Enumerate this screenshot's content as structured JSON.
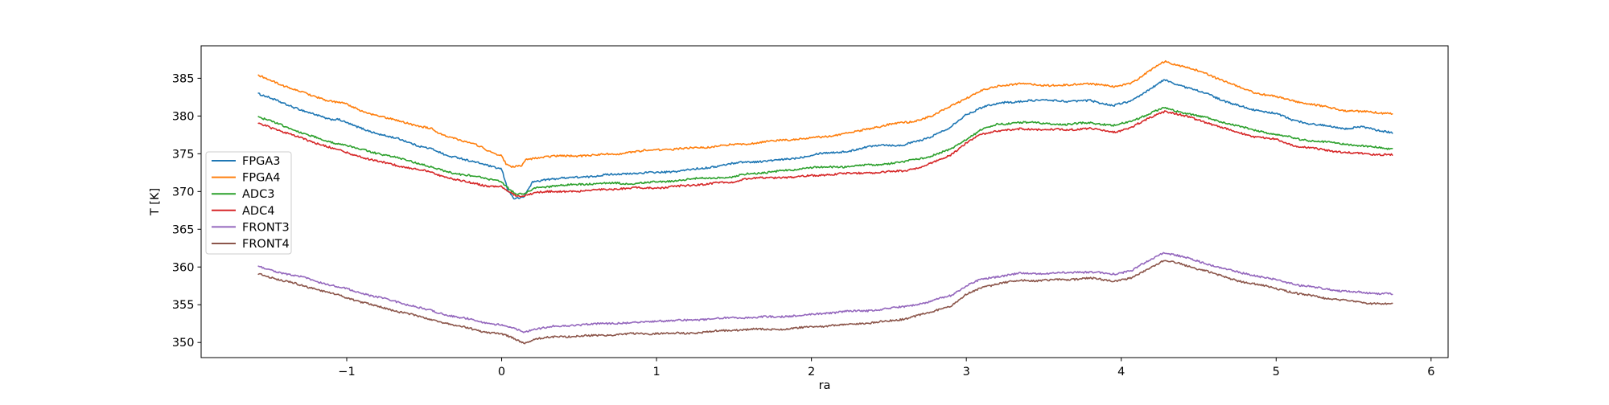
{
  "chart_data": {
    "type": "line",
    "title": "",
    "xlabel": "ra",
    "ylabel": "T [K]",
    "xlim": [
      -1.94,
      6.11
    ],
    "ylim": [
      348.0,
      389.3
    ],
    "xticks": [
      -1,
      0,
      1,
      2,
      3,
      4,
      5,
      6
    ],
    "xtick_labels": [
      "−1",
      "0",
      "1",
      "2",
      "3",
      "4",
      "5",
      "6"
    ],
    "yticks": [
      350,
      355,
      360,
      365,
      370,
      375,
      380,
      385
    ],
    "ytick_labels": [
      "350",
      "355",
      "360",
      "365",
      "370",
      "375",
      "380",
      "385"
    ],
    "grid": false,
    "legend_position": "upper left",
    "legend_entries": [
      "FPGA3",
      "FPGA4",
      "ADC3",
      "ADC4",
      "FRONT3",
      "FRONT4"
    ],
    "series": [
      {
        "name": "FPGA3",
        "color": "#1f77b4",
        "points": [
          [
            -1.57,
            383.0
          ],
          [
            -1.4,
            381.6
          ],
          [
            -1.25,
            380.4
          ],
          [
            -1.12,
            379.6
          ],
          [
            -1.05,
            379.6
          ],
          [
            -0.95,
            378.7
          ],
          [
            -0.8,
            377.7
          ],
          [
            -0.65,
            376.8
          ],
          [
            -0.55,
            376.1
          ],
          [
            -0.45,
            375.6
          ],
          [
            -0.35,
            374.7
          ],
          [
            -0.28,
            374.6
          ],
          [
            -0.15,
            373.8
          ],
          [
            -0.05,
            373.2
          ],
          [
            0.0,
            373.0
          ],
          [
            0.04,
            370.2
          ],
          [
            0.08,
            369.0
          ],
          [
            0.14,
            369.1
          ],
          [
            0.2,
            371.2
          ],
          [
            0.28,
            371.6
          ],
          [
            0.45,
            371.9
          ],
          [
            0.7,
            372.2
          ],
          [
            1.0,
            372.5
          ],
          [
            1.3,
            373.1
          ],
          [
            1.55,
            373.8
          ],
          [
            1.8,
            374.2
          ],
          [
            2.05,
            375.0
          ],
          [
            2.25,
            375.3
          ],
          [
            2.45,
            376.3
          ],
          [
            2.58,
            376.1
          ],
          [
            2.75,
            377.1
          ],
          [
            2.88,
            378.2
          ],
          [
            3.0,
            380.2
          ],
          [
            3.12,
            381.3
          ],
          [
            3.25,
            381.9
          ],
          [
            3.4,
            382.0
          ],
          [
            3.55,
            382.1
          ],
          [
            3.67,
            381.8
          ],
          [
            3.8,
            382.1
          ],
          [
            3.95,
            381.4
          ],
          [
            4.07,
            382.1
          ],
          [
            4.28,
            384.7
          ],
          [
            4.4,
            383.9
          ],
          [
            4.55,
            383.0
          ],
          [
            4.7,
            381.8
          ],
          [
            4.85,
            380.8
          ],
          [
            5.0,
            380.3
          ],
          [
            5.1,
            379.4
          ],
          [
            5.3,
            378.8
          ],
          [
            5.45,
            378.4
          ],
          [
            5.55,
            378.6
          ],
          [
            5.65,
            378.0
          ],
          [
            5.75,
            377.8
          ]
        ]
      },
      {
        "name": "FPGA4",
        "color": "#ff7f0e",
        "points": [
          [
            -1.57,
            385.4
          ],
          [
            -1.4,
            384.0
          ],
          [
            -1.25,
            382.8
          ],
          [
            -1.12,
            382.0
          ],
          [
            -1.02,
            381.7
          ],
          [
            -0.9,
            380.7
          ],
          [
            -0.75,
            379.8
          ],
          [
            -0.6,
            379.0
          ],
          [
            -0.45,
            378.2
          ],
          [
            -0.42,
            377.7
          ],
          [
            -0.3,
            377.1
          ],
          [
            -0.15,
            376.1
          ],
          [
            -0.05,
            375.1
          ],
          [
            0.0,
            374.8
          ],
          [
            0.03,
            373.6
          ],
          [
            0.07,
            373.2
          ],
          [
            0.13,
            373.3
          ],
          [
            0.16,
            374.2
          ],
          [
            0.3,
            374.6
          ],
          [
            0.5,
            374.8
          ],
          [
            0.75,
            375.0
          ],
          [
            1.0,
            375.5
          ],
          [
            1.3,
            375.9
          ],
          [
            1.6,
            376.3
          ],
          [
            1.85,
            376.9
          ],
          [
            2.1,
            377.3
          ],
          [
            2.3,
            377.9
          ],
          [
            2.5,
            378.9
          ],
          [
            2.65,
            379.3
          ],
          [
            2.8,
            380.2
          ],
          [
            2.95,
            381.8
          ],
          [
            3.1,
            383.3
          ],
          [
            3.22,
            384.1
          ],
          [
            3.35,
            384.3
          ],
          [
            3.5,
            384.1
          ],
          [
            3.65,
            384.0
          ],
          [
            3.8,
            384.3
          ],
          [
            3.95,
            383.9
          ],
          [
            4.07,
            384.5
          ],
          [
            4.28,
            387.2
          ],
          [
            4.4,
            386.5
          ],
          [
            4.55,
            385.6
          ],
          [
            4.7,
            384.4
          ],
          [
            4.85,
            383.2
          ],
          [
            5.0,
            382.5
          ],
          [
            5.15,
            381.8
          ],
          [
            5.3,
            381.3
          ],
          [
            5.45,
            380.8
          ],
          [
            5.6,
            380.5
          ],
          [
            5.75,
            380.3
          ]
        ]
      },
      {
        "name": "ADC3",
        "color": "#2ca02c",
        "points": [
          [
            -1.57,
            379.8
          ],
          [
            -1.4,
            378.6
          ],
          [
            -1.25,
            377.5
          ],
          [
            -1.1,
            376.6
          ],
          [
            -0.95,
            375.8
          ],
          [
            -0.8,
            375.0
          ],
          [
            -0.65,
            374.3
          ],
          [
            -0.5,
            373.6
          ],
          [
            -0.35,
            372.6
          ],
          [
            -0.2,
            372.1
          ],
          [
            -0.1,
            371.6
          ],
          [
            0.0,
            371.3
          ],
          [
            0.05,
            370.3
          ],
          [
            0.1,
            369.6
          ],
          [
            0.15,
            369.7
          ],
          [
            0.22,
            370.6
          ],
          [
            0.35,
            370.8
          ],
          [
            0.6,
            371.0
          ],
          [
            0.85,
            371.1
          ],
          [
            1.0,
            371.3
          ],
          [
            1.3,
            371.7
          ],
          [
            1.5,
            371.9
          ],
          [
            1.58,
            372.4
          ],
          [
            1.8,
            372.7
          ],
          [
            2.0,
            373.1
          ],
          [
            2.2,
            373.3
          ],
          [
            2.4,
            373.6
          ],
          [
            2.6,
            373.9
          ],
          [
            2.75,
            374.5
          ],
          [
            2.9,
            375.6
          ],
          [
            3.0,
            377.0
          ],
          [
            3.1,
            378.3
          ],
          [
            3.2,
            378.9
          ],
          [
            3.35,
            379.1
          ],
          [
            3.5,
            379.0
          ],
          [
            3.65,
            378.9
          ],
          [
            3.8,
            379.2
          ],
          [
            3.95,
            378.7
          ],
          [
            4.07,
            379.3
          ],
          [
            4.28,
            381.1
          ],
          [
            4.4,
            380.5
          ],
          [
            4.55,
            379.8
          ],
          [
            4.7,
            378.9
          ],
          [
            4.85,
            378.1
          ],
          [
            5.0,
            377.6
          ],
          [
            5.15,
            377.0
          ],
          [
            5.3,
            376.6
          ],
          [
            5.45,
            376.2
          ],
          [
            5.6,
            375.9
          ],
          [
            5.75,
            375.7
          ]
        ]
      },
      {
        "name": "ADC4",
        "color": "#d62728",
        "points": [
          [
            -1.57,
            379.1
          ],
          [
            -1.4,
            377.8
          ],
          [
            -1.25,
            376.7
          ],
          [
            -1.1,
            375.8
          ],
          [
            -0.95,
            374.9
          ],
          [
            -0.8,
            374.0
          ],
          [
            -0.65,
            373.3
          ],
          [
            -0.5,
            372.7
          ],
          [
            -0.35,
            371.9
          ],
          [
            -0.2,
            371.2
          ],
          [
            -0.1,
            370.8
          ],
          [
            0.0,
            370.6
          ],
          [
            0.05,
            369.8
          ],
          [
            0.1,
            369.3
          ],
          [
            0.15,
            369.4
          ],
          [
            0.22,
            369.9
          ],
          [
            0.35,
            370.0
          ],
          [
            0.6,
            370.2
          ],
          [
            0.85,
            370.4
          ],
          [
            1.0,
            370.5
          ],
          [
            1.3,
            371.0
          ],
          [
            1.5,
            371.2
          ],
          [
            1.58,
            371.7
          ],
          [
            1.8,
            371.9
          ],
          [
            2.0,
            372.1
          ],
          [
            2.2,
            372.3
          ],
          [
            2.4,
            372.5
          ],
          [
            2.6,
            372.8
          ],
          [
            2.75,
            373.5
          ],
          [
            2.9,
            374.8
          ],
          [
            3.0,
            376.4
          ],
          [
            3.1,
            377.6
          ],
          [
            3.2,
            378.1
          ],
          [
            3.35,
            378.3
          ],
          [
            3.5,
            378.2
          ],
          [
            3.65,
            378.1
          ],
          [
            3.8,
            378.4
          ],
          [
            3.95,
            377.9
          ],
          [
            4.07,
            378.6
          ],
          [
            4.28,
            380.6
          ],
          [
            4.4,
            380.0
          ],
          [
            4.55,
            379.2
          ],
          [
            4.7,
            378.2
          ],
          [
            4.85,
            377.3
          ],
          [
            5.0,
            376.8
          ],
          [
            5.15,
            375.9
          ],
          [
            5.3,
            375.6
          ],
          [
            5.45,
            375.2
          ],
          [
            5.6,
            374.9
          ],
          [
            5.75,
            374.8
          ]
        ]
      },
      {
        "name": "FRONT3",
        "color": "#9467bd",
        "points": [
          [
            -1.57,
            360.1
          ],
          [
            -1.4,
            359.1
          ],
          [
            -1.25,
            358.4
          ],
          [
            -1.1,
            357.6
          ],
          [
            -0.95,
            356.9
          ],
          [
            -0.8,
            356.0
          ],
          [
            -0.65,
            355.2
          ],
          [
            -0.5,
            354.4
          ],
          [
            -0.35,
            353.7
          ],
          [
            -0.2,
            353.1
          ],
          [
            -0.1,
            352.6
          ],
          [
            0.0,
            352.3
          ],
          [
            0.08,
            351.8
          ],
          [
            0.14,
            351.3
          ],
          [
            0.22,
            351.8
          ],
          [
            0.35,
            352.2
          ],
          [
            0.5,
            352.4
          ],
          [
            0.7,
            352.5
          ],
          [
            0.9,
            352.6
          ],
          [
            1.0,
            352.9
          ],
          [
            1.2,
            353.0
          ],
          [
            1.5,
            353.2
          ],
          [
            1.8,
            353.5
          ],
          [
            2.0,
            353.7
          ],
          [
            2.2,
            354.0
          ],
          [
            2.4,
            354.3
          ],
          [
            2.6,
            354.8
          ],
          [
            2.75,
            355.3
          ],
          [
            2.9,
            356.2
          ],
          [
            3.0,
            357.5
          ],
          [
            3.1,
            358.4
          ],
          [
            3.2,
            358.8
          ],
          [
            3.35,
            359.2
          ],
          [
            3.5,
            359.1
          ],
          [
            3.65,
            359.2
          ],
          [
            3.8,
            359.4
          ],
          [
            3.95,
            359.1
          ],
          [
            4.07,
            359.6
          ],
          [
            4.28,
            361.9
          ],
          [
            4.4,
            361.3
          ],
          [
            4.55,
            360.5
          ],
          [
            4.7,
            359.6
          ],
          [
            4.85,
            358.9
          ],
          [
            5.0,
            358.2
          ],
          [
            5.15,
            357.6
          ],
          [
            5.3,
            357.2
          ],
          [
            5.45,
            356.8
          ],
          [
            5.6,
            356.5
          ],
          [
            5.75,
            356.4
          ]
        ]
      },
      {
        "name": "FRONT4",
        "color": "#8c564b",
        "points": [
          [
            -1.57,
            359.2
          ],
          [
            -1.4,
            358.1
          ],
          [
            -1.25,
            357.3
          ],
          [
            -1.1,
            356.5
          ],
          [
            -0.95,
            355.7
          ],
          [
            -0.8,
            354.8
          ],
          [
            -0.65,
            354.0
          ],
          [
            -0.5,
            353.2
          ],
          [
            -0.35,
            352.5
          ],
          [
            -0.2,
            351.9
          ],
          [
            -0.1,
            351.4
          ],
          [
            0.0,
            351.1
          ],
          [
            0.08,
            350.5
          ],
          [
            0.14,
            349.9
          ],
          [
            0.22,
            350.4
          ],
          [
            0.35,
            350.8
          ],
          [
            0.5,
            350.9
          ],
          [
            0.7,
            351.0
          ],
          [
            0.9,
            351.1
          ],
          [
            1.0,
            351.2
          ],
          [
            1.2,
            351.3
          ],
          [
            1.5,
            351.6
          ],
          [
            1.8,
            351.8
          ],
          [
            2.0,
            352.1
          ],
          [
            2.2,
            352.3
          ],
          [
            2.4,
            352.6
          ],
          [
            2.6,
            353.2
          ],
          [
            2.75,
            353.9
          ],
          [
            2.9,
            354.8
          ],
          [
            3.0,
            356.3
          ],
          [
            3.1,
            357.3
          ],
          [
            3.2,
            357.8
          ],
          [
            3.35,
            358.3
          ],
          [
            3.5,
            358.2
          ],
          [
            3.65,
            358.3
          ],
          [
            3.8,
            358.5
          ],
          [
            3.95,
            358.2
          ],
          [
            4.07,
            358.6
          ],
          [
            4.28,
            360.9
          ],
          [
            4.4,
            360.2
          ],
          [
            4.55,
            359.5
          ],
          [
            4.7,
            358.5
          ],
          [
            4.85,
            357.8
          ],
          [
            5.0,
            357.1
          ],
          [
            5.15,
            356.4
          ],
          [
            5.3,
            356.0
          ],
          [
            5.45,
            355.6
          ],
          [
            5.6,
            355.2
          ],
          [
            5.75,
            355.0
          ]
        ]
      }
    ],
    "colors": {
      "axis": "#000000",
      "legend_border": "#cccccc",
      "legend_background": "#ffffff"
    }
  }
}
